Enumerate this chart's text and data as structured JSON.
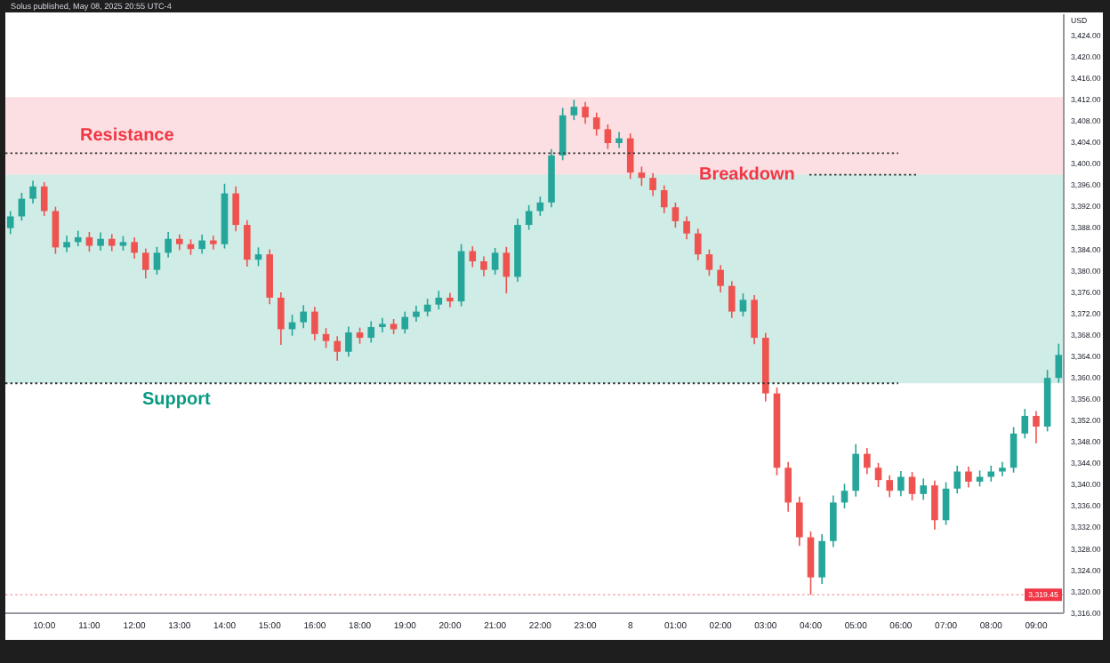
{
  "chart_data": {
    "type": "candlestick",
    "title": "Solus published, May 08, 2025 20:55 UTC-4",
    "ylabel": "USD",
    "categories": [
      null,
      null,
      null,
      "10:00",
      null,
      null,
      null,
      "11:00",
      null,
      null,
      null,
      "12:00",
      null,
      null,
      null,
      "13:00",
      null,
      null,
      null,
      "14:00",
      null,
      null,
      null,
      "15:00",
      null,
      null,
      null,
      "16:00",
      null,
      null,
      null,
      "18:00",
      null,
      null,
      null,
      "19:00",
      null,
      null,
      null,
      "20:00",
      null,
      null,
      null,
      "21:00",
      null,
      null,
      null,
      "22:00",
      null,
      null,
      null,
      "23:00",
      null,
      null,
      null,
      "8",
      null,
      null,
      null,
      "01:00",
      null,
      null,
      null,
      "02:00",
      null,
      null,
      null,
      "03:00",
      null,
      null,
      null,
      "04:00",
      null,
      null,
      null,
      "05:00",
      null,
      null,
      null,
      "06:00",
      null,
      null,
      null,
      "07:00",
      null,
      null,
      null,
      "08:00",
      null,
      null,
      null,
      "09:00",
      null,
      null
    ],
    "ohlc": [
      [
        3388.0,
        3391.2,
        3386.9,
        3390.2
      ],
      [
        3390.2,
        3394.6,
        3389.4,
        3393.5
      ],
      [
        3393.5,
        3396.9,
        3392.6,
        3395.8
      ],
      [
        3395.8,
        3396.6,
        3390.3,
        3391.2
      ],
      [
        3391.2,
        3392.0,
        3383.2,
        3384.4
      ],
      [
        3384.4,
        3386.6,
        3383.5,
        3385.4
      ],
      [
        3385.4,
        3387.5,
        3384.6,
        3386.3
      ],
      [
        3386.3,
        3387.3,
        3383.6,
        3384.7
      ],
      [
        3384.7,
        3387.2,
        3383.8,
        3386.0
      ],
      [
        3386.0,
        3386.9,
        3383.7,
        3384.7
      ],
      [
        3384.7,
        3386.5,
        3383.8,
        3385.4
      ],
      [
        3385.4,
        3386.3,
        3382.3,
        3383.4
      ],
      [
        3383.4,
        3384.2,
        3378.6,
        3380.2
      ],
      [
        3380.2,
        3384.5,
        3379.3,
        3383.4
      ],
      [
        3383.4,
        3387.3,
        3382.5,
        3386.0
      ],
      [
        3386.0,
        3386.8,
        3383.9,
        3385.0
      ],
      [
        3385.0,
        3385.9,
        3383.0,
        3384.1
      ],
      [
        3384.1,
        3386.8,
        3383.2,
        3385.7
      ],
      [
        3385.7,
        3386.6,
        3384.0,
        3385.0
      ],
      [
        3385.0,
        3396.3,
        3384.2,
        3394.5
      ],
      [
        3394.5,
        3395.8,
        3387.4,
        3388.6
      ],
      [
        3388.6,
        3389.5,
        3380.8,
        3382.1
      ],
      [
        3382.1,
        3384.4,
        3380.9,
        3383.1
      ],
      [
        3383.1,
        3384.0,
        3373.8,
        3375.0
      ],
      [
        3375.0,
        3376.0,
        3366.2,
        3369.1
      ],
      [
        3369.1,
        3371.8,
        3367.9,
        3370.4
      ],
      [
        3370.4,
        3373.6,
        3369.3,
        3372.4
      ],
      [
        3372.4,
        3373.3,
        3367.0,
        3368.2
      ],
      [
        3368.2,
        3369.3,
        3365.6,
        3366.9
      ],
      [
        3366.9,
        3367.8,
        3363.2,
        3364.9
      ],
      [
        3364.9,
        3369.6,
        3364.0,
        3368.5
      ],
      [
        3368.5,
        3369.4,
        3366.4,
        3367.5
      ],
      [
        3367.5,
        3370.6,
        3366.6,
        3369.5
      ],
      [
        3369.5,
        3371.2,
        3368.5,
        3370.1
      ],
      [
        3370.1,
        3371.0,
        3368.2,
        3369.1
      ],
      [
        3369.1,
        3372.4,
        3368.3,
        3371.4
      ],
      [
        3371.4,
        3373.5,
        3370.5,
        3372.4
      ],
      [
        3372.4,
        3374.8,
        3371.5,
        3373.7
      ],
      [
        3373.7,
        3376.3,
        3372.8,
        3375.0
      ],
      [
        3375.0,
        3375.9,
        3373.2,
        3374.3
      ],
      [
        3374.3,
        3385.0,
        3373.4,
        3383.7
      ],
      [
        3383.7,
        3384.6,
        3380.7,
        3381.8
      ],
      [
        3381.8,
        3382.7,
        3379.0,
        3380.2
      ],
      [
        3380.2,
        3384.3,
        3379.3,
        3383.4
      ],
      [
        3383.4,
        3384.5,
        3375.8,
        3378.9
      ],
      [
        3378.9,
        3389.8,
        3378.0,
        3388.6
      ],
      [
        3388.6,
        3392.3,
        3387.7,
        3391.2
      ],
      [
        3391.2,
        3393.9,
        3390.3,
        3392.8
      ],
      [
        3392.8,
        3402.8,
        3391.9,
        3401.6
      ],
      [
        3401.6,
        3410.5,
        3400.7,
        3409.1
      ],
      [
        3409.1,
        3412.0,
        3408.2,
        3410.7
      ],
      [
        3410.7,
        3411.6,
        3407.5,
        3408.7
      ],
      [
        3408.7,
        3409.6,
        3405.3,
        3406.5
      ],
      [
        3406.5,
        3407.4,
        3402.8,
        3403.9
      ],
      [
        3403.9,
        3406.0,
        3403.0,
        3404.8
      ],
      [
        3404.8,
        3405.7,
        3397.2,
        3398.4
      ],
      [
        3398.4,
        3399.5,
        3395.9,
        3397.4
      ],
      [
        3397.4,
        3398.3,
        3394.0,
        3395.1
      ],
      [
        3395.1,
        3396.0,
        3390.8,
        3391.9
      ],
      [
        3391.9,
        3392.8,
        3388.1,
        3389.3
      ],
      [
        3389.3,
        3390.2,
        3385.9,
        3387.0
      ],
      [
        3387.0,
        3387.9,
        3382.0,
        3383.1
      ],
      [
        3383.1,
        3384.0,
        3379.1,
        3380.2
      ],
      [
        3380.2,
        3381.1,
        3376.0,
        3377.2
      ],
      [
        3377.2,
        3378.1,
        3371.2,
        3372.4
      ],
      [
        3372.4,
        3375.8,
        3371.5,
        3374.6
      ],
      [
        3374.6,
        3375.5,
        3366.3,
        3367.5
      ],
      [
        3367.5,
        3368.4,
        3355.6,
        3357.1
      ],
      [
        3357.1,
        3358.2,
        3341.8,
        3343.2
      ],
      [
        3343.2,
        3344.3,
        3335.0,
        3336.7
      ],
      [
        3336.7,
        3337.8,
        3328.6,
        3330.2
      ],
      [
        3330.2,
        3331.3,
        3319.45,
        3322.7
      ],
      [
        3322.7,
        3330.8,
        3321.5,
        3329.5
      ],
      [
        3329.5,
        3338.0,
        3328.4,
        3336.7
      ],
      [
        3336.7,
        3340.2,
        3335.6,
        3338.9
      ],
      [
        3338.9,
        3347.6,
        3337.8,
        3345.8
      ],
      [
        3345.8,
        3346.9,
        3342.0,
        3343.2
      ],
      [
        3343.2,
        3344.1,
        3339.6,
        3340.9
      ],
      [
        3340.9,
        3341.8,
        3337.7,
        3338.9
      ],
      [
        3338.9,
        3342.6,
        3337.9,
        3341.5
      ],
      [
        3341.5,
        3342.4,
        3337.1,
        3338.3
      ],
      [
        3338.3,
        3341.2,
        3337.2,
        3339.9
      ],
      [
        3339.9,
        3340.8,
        3331.6,
        3333.4
      ],
      [
        3333.4,
        3340.5,
        3332.5,
        3339.3
      ],
      [
        3339.3,
        3343.6,
        3338.4,
        3342.5
      ],
      [
        3342.5,
        3343.4,
        3339.5,
        3340.6
      ],
      [
        3340.6,
        3342.7,
        3339.7,
        3341.5
      ],
      [
        3341.5,
        3343.6,
        3340.6,
        3342.5
      ],
      [
        3342.5,
        3344.3,
        3341.6,
        3343.2
      ],
      [
        3343.2,
        3350.8,
        3342.3,
        3349.6
      ],
      [
        3349.6,
        3354.2,
        3348.7,
        3352.9
      ],
      [
        3352.9,
        3353.8,
        3347.8,
        3350.9
      ],
      [
        3350.9,
        3361.5,
        3350.0,
        3360.0
      ],
      [
        3360.0,
        3366.4,
        3359.1,
        3364.3
      ]
    ],
    "ylim": [
      3316,
      3428
    ],
    "yticks": [
      {
        "value": 3316,
        "label": "3,316.00"
      },
      {
        "value": 3320,
        "label": "3,320.00"
      },
      {
        "value": 3324,
        "label": "3,324.00"
      },
      {
        "value": 3328,
        "label": "3,328.00"
      },
      {
        "value": 3332,
        "label": "3,332.00"
      },
      {
        "value": 3336,
        "label": "3,336.00"
      },
      {
        "value": 3340,
        "label": "3,340.00"
      },
      {
        "value": 3344,
        "label": "3,344.00"
      },
      {
        "value": 3348,
        "label": "3,348.00"
      },
      {
        "value": 3352,
        "label": "3,352.00"
      },
      {
        "value": 3356,
        "label": "3,356.00"
      },
      {
        "value": 3360,
        "label": "3,360.00"
      },
      {
        "value": 3364,
        "label": "3,364.00"
      },
      {
        "value": 3368,
        "label": "3,368.00"
      },
      {
        "value": 3372,
        "label": "3,372.00"
      },
      {
        "value": 3376,
        "label": "3,376.00"
      },
      {
        "value": 3380,
        "label": "3,380.00"
      },
      {
        "value": 3384,
        "label": "3,384.00"
      },
      {
        "value": 3388,
        "label": "3,388.00"
      },
      {
        "value": 3392,
        "label": "3,392.00"
      },
      {
        "value": 3396,
        "label": "3,396.00"
      },
      {
        "value": 3400,
        "label": "3,400.00"
      },
      {
        "value": 3404,
        "label": "3,404.00"
      },
      {
        "value": 3408,
        "label": "3,408.00"
      },
      {
        "value": 3412,
        "label": "3,412.00"
      },
      {
        "value": 3416,
        "label": "3,416.00"
      },
      {
        "value": 3420,
        "label": "3,420.00"
      },
      {
        "value": 3424,
        "label": "3,424.00"
      }
    ],
    "ref_lines": [
      {
        "axis": "y",
        "value": 3402,
        "label": "Resistance",
        "color": "#333333",
        "line_style": "dotted"
      },
      {
        "axis": "y",
        "value": 3398,
        "label": "Breakdown",
        "color": "#333333",
        "line_style": "dotted"
      },
      {
        "axis": "y",
        "value": 3359,
        "label": "Support",
        "color": "#333333",
        "line_style": "dotted"
      },
      {
        "axis": "y",
        "value": 3319.45,
        "label": "3,319.45",
        "color": "#f7a1a8",
        "line_style": "dotted"
      }
    ],
    "bands": [
      {
        "axis": "y",
        "from": 3398,
        "to": 3412.5,
        "color": "#f7c5ca"
      },
      {
        "axis": "y",
        "from": 3359,
        "to": 3398,
        "color": "#a8dcd1"
      }
    ]
  }
}
